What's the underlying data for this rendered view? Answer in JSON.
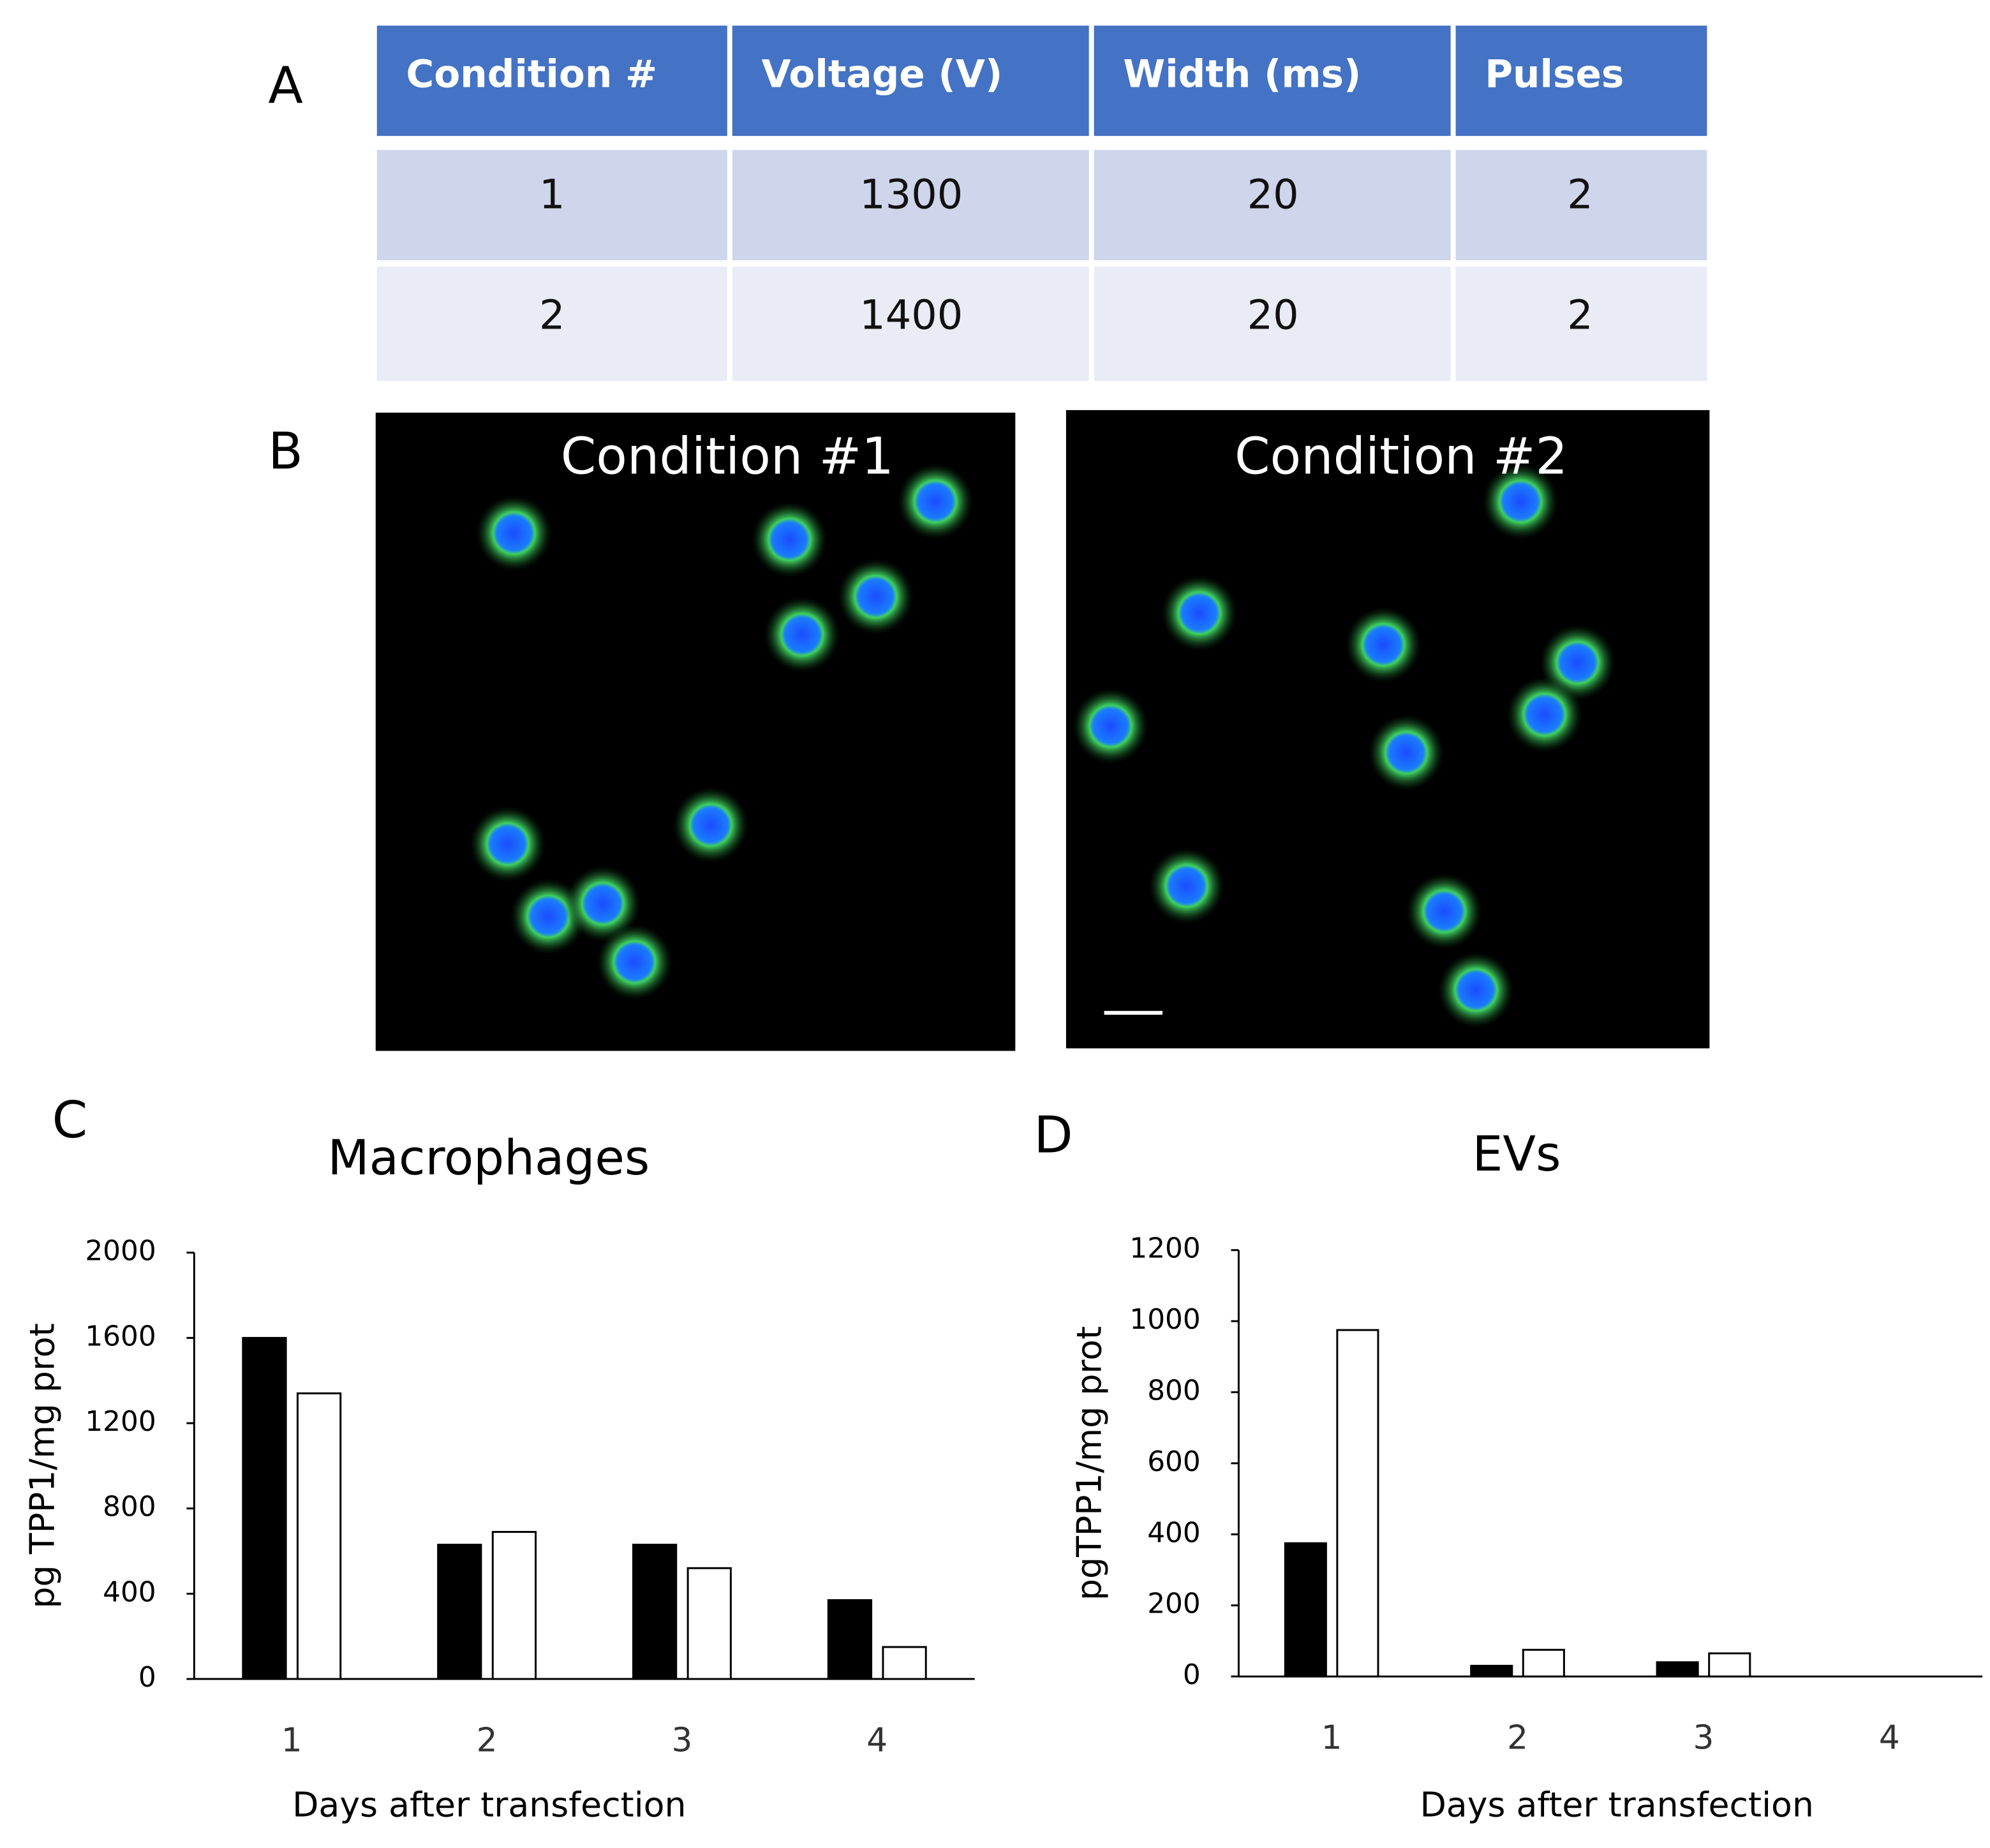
{
  "panels": [
    "A",
    "B",
    "C",
    "D"
  ],
  "table": {
    "header": [
      "Condition #",
      "Voltage (V)",
      "Width (ms)",
      "Pulses"
    ],
    "rows": [
      [
        "1",
        "1300",
        "20",
        "2"
      ],
      [
        "2",
        "1400",
        "20",
        "2"
      ]
    ]
  },
  "images": [
    {
      "caption": "Condition #1"
    },
    {
      "caption": "Condition #2"
    }
  ],
  "chart_data": [
    {
      "type": "bar",
      "title": "Macrophages",
      "ylabel": "pg TPP1/mg prot",
      "xlabel": "Days after transfection",
      "categories": [
        "1",
        "2",
        "3",
        "4"
      ],
      "series": [
        {
          "color": "#000000",
          "values": [
            1600,
            630,
            630,
            370
          ]
        },
        {
          "color": "#ffffff",
          "values": [
            1340,
            690,
            520,
            150
          ]
        }
      ],
      "ylim": [
        0,
        2000
      ],
      "yticks": [
        0,
        400,
        800,
        1200,
        1600,
        2000
      ]
    },
    {
      "type": "bar",
      "title": "EVs",
      "ylabel": "pgTPP1/mg prot",
      "xlabel": "Days after transfection",
      "categories": [
        "1",
        "2",
        "3",
        "4"
      ],
      "series": [
        {
          "color": "#000000",
          "values": [
            375,
            30,
            40,
            null
          ]
        },
        {
          "color": "#ffffff",
          "values": [
            975,
            75,
            65,
            null
          ]
        }
      ],
      "ylim": [
        0,
        1200
      ],
      "yticks": [
        0,
        200,
        400,
        600,
        800,
        1000,
        1200
      ]
    }
  ]
}
